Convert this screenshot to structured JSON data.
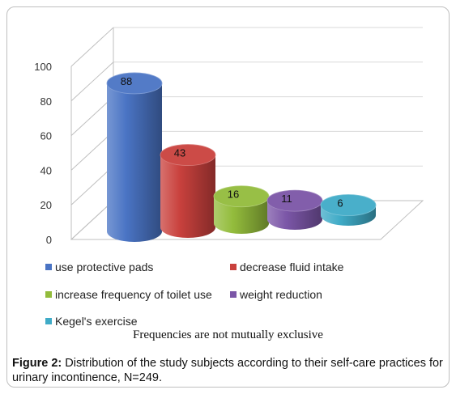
{
  "chart_data": {
    "type": "bar",
    "categories": [
      "use protective pads",
      "decrease fluid intake",
      "increase frequency of toilet use",
      "weight reduction",
      "Kegel's exercise"
    ],
    "values": [
      88,
      43,
      16,
      11,
      6
    ],
    "colors": [
      "#4a74c4",
      "#c9413d",
      "#93bc3c",
      "#7b56a7",
      "#3fabc7"
    ],
    "ylim": [
      0,
      100
    ],
    "yticks": [
      "0",
      "20",
      "40",
      "60",
      "80",
      "100"
    ],
    "legend_position": "bottom",
    "style": "3d-cylinder",
    "note": "Frequencies are not mutually exclusive"
  },
  "caption": {
    "label": "Figure 2:",
    "text": " Distribution of the study subjects according to their self-care practices for urinary incontinence, N=249."
  }
}
